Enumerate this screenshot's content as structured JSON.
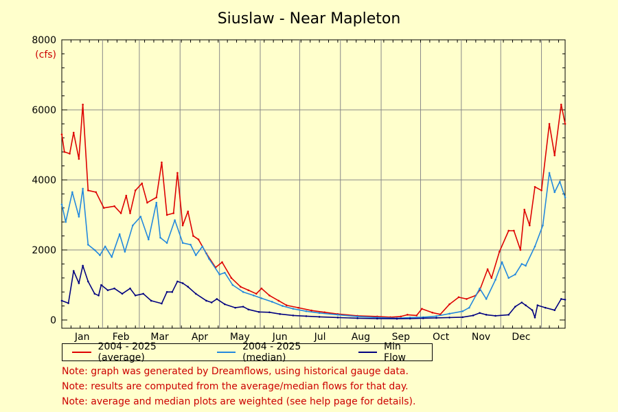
{
  "chart_data": {
    "type": "line",
    "title": "Siuslaw - Near Mapleton",
    "y_unit": "(cfs)",
    "ylim": [
      0,
      8000
    ],
    "y_ticks": [
      0,
      2000,
      4000,
      6000,
      8000
    ],
    "xlim": [
      0,
      365
    ],
    "months": [
      "Jan",
      "Feb",
      "Mar",
      "Apr",
      "May",
      "Jun",
      "Jul",
      "Aug",
      "Sep",
      "Oct",
      "Nov",
      "Dec"
    ],
    "grid": true,
    "legend_position": "bottom",
    "series": [
      {
        "name": "2004 - 2025 (average)",
        "color": "#dd0000",
        "points": [
          [
            0,
            5300
          ],
          [
            2,
            4800
          ],
          [
            6,
            4750
          ],
          [
            9,
            5350
          ],
          [
            13,
            4600
          ],
          [
            16,
            6150
          ],
          [
            20,
            3700
          ],
          [
            26,
            3650
          ],
          [
            32,
            3200
          ],
          [
            40,
            3250
          ],
          [
            45,
            3050
          ],
          [
            49,
            3550
          ],
          [
            52,
            3050
          ],
          [
            56,
            3700
          ],
          [
            61,
            3900
          ],
          [
            65,
            3350
          ],
          [
            72,
            3500
          ],
          [
            76,
            4500
          ],
          [
            80,
            3000
          ],
          [
            85,
            3050
          ],
          [
            88,
            4200
          ],
          [
            92,
            2700
          ],
          [
            96,
            3100
          ],
          [
            100,
            2400
          ],
          [
            104,
            2300
          ],
          [
            110,
            1900
          ],
          [
            117,
            1500
          ],
          [
            122,
            1650
          ],
          [
            129,
            1200
          ],
          [
            136,
            950
          ],
          [
            142,
            850
          ],
          [
            148,
            750
          ],
          [
            152,
            900
          ],
          [
            158,
            700
          ],
          [
            165,
            550
          ],
          [
            171,
            420
          ],
          [
            180,
            350
          ],
          [
            190,
            270
          ],
          [
            200,
            220
          ],
          [
            210,
            170
          ],
          [
            225,
            120
          ],
          [
            240,
            100
          ],
          [
            250,
            80
          ],
          [
            258,
            100
          ],
          [
            263,
            150
          ],
          [
            270,
            130
          ],
          [
            274,
            320
          ],
          [
            282,
            210
          ],
          [
            288,
            160
          ],
          [
            295,
            450
          ],
          [
            302,
            650
          ],
          [
            308,
            600
          ],
          [
            315,
            700
          ],
          [
            318,
            850
          ],
          [
            324,
            1450
          ],
          [
            327,
            1200
          ],
          [
            333,
            1950
          ],
          [
            340,
            2550
          ],
          [
            344,
            2550
          ],
          [
            349,
            2000
          ],
          [
            352,
            3150
          ],
          [
            356,
            2700
          ],
          [
            360,
            3800
          ],
          [
            365,
            3700
          ],
          [
            371,
            5600
          ],
          [
            375,
            4700
          ],
          [
            380,
            6150
          ],
          [
            383,
            5600
          ]
        ]
      },
      {
        "name": "2004 - 2025 (median)",
        "color": "#2288dd",
        "points": [
          [
            0,
            3300
          ],
          [
            3,
            2800
          ],
          [
            8,
            3650
          ],
          [
            13,
            2950
          ],
          [
            16,
            3750
          ],
          [
            20,
            2150
          ],
          [
            25,
            2000
          ],
          [
            29,
            1850
          ],
          [
            33,
            2100
          ],
          [
            38,
            1800
          ],
          [
            44,
            2450
          ],
          [
            48,
            1950
          ],
          [
            54,
            2700
          ],
          [
            60,
            2950
          ],
          [
            66,
            2300
          ],
          [
            72,
            3350
          ],
          [
            75,
            2350
          ],
          [
            80,
            2200
          ],
          [
            86,
            2850
          ],
          [
            92,
            2200
          ],
          [
            98,
            2150
          ],
          [
            102,
            1850
          ],
          [
            107,
            2100
          ],
          [
            112,
            1750
          ],
          [
            120,
            1300
          ],
          [
            124,
            1350
          ],
          [
            130,
            1000
          ],
          [
            138,
            800
          ],
          [
            146,
            700
          ],
          [
            152,
            620
          ],
          [
            160,
            520
          ],
          [
            168,
            400
          ],
          [
            176,
            320
          ],
          [
            186,
            250
          ],
          [
            196,
            200
          ],
          [
            210,
            150
          ],
          [
            225,
            100
          ],
          [
            240,
            70
          ],
          [
            255,
            50
          ],
          [
            265,
            70
          ],
          [
            275,
            80
          ],
          [
            285,
            110
          ],
          [
            295,
            180
          ],
          [
            305,
            250
          ],
          [
            310,
            350
          ],
          [
            318,
            900
          ],
          [
            323,
            600
          ],
          [
            330,
            1150
          ],
          [
            335,
            1650
          ],
          [
            340,
            1200
          ],
          [
            345,
            1300
          ],
          [
            350,
            1600
          ],
          [
            353,
            1550
          ],
          [
            360,
            2100
          ],
          [
            366,
            2700
          ],
          [
            371,
            4200
          ],
          [
            375,
            3650
          ],
          [
            379,
            3950
          ],
          [
            383,
            3500
          ]
        ]
      },
      {
        "name": "Min Flow",
        "color": "#000080",
        "points": [
          [
            0,
            550
          ],
          [
            5,
            480
          ],
          [
            9,
            1400
          ],
          [
            13,
            1050
          ],
          [
            16,
            1550
          ],
          [
            20,
            1100
          ],
          [
            25,
            750
          ],
          [
            28,
            700
          ],
          [
            30,
            1000
          ],
          [
            35,
            850
          ],
          [
            40,
            900
          ],
          [
            46,
            750
          ],
          [
            52,
            900
          ],
          [
            56,
            700
          ],
          [
            62,
            750
          ],
          [
            68,
            550
          ],
          [
            76,
            470
          ],
          [
            80,
            800
          ],
          [
            84,
            800
          ],
          [
            88,
            1100
          ],
          [
            92,
            1050
          ],
          [
            96,
            950
          ],
          [
            102,
            750
          ],
          [
            110,
            550
          ],
          [
            114,
            500
          ],
          [
            118,
            600
          ],
          [
            124,
            450
          ],
          [
            132,
            350
          ],
          [
            138,
            380
          ],
          [
            142,
            300
          ],
          [
            150,
            230
          ],
          [
            158,
            220
          ],
          [
            166,
            170
          ],
          [
            176,
            130
          ],
          [
            186,
            110
          ],
          [
            196,
            90
          ],
          [
            210,
            70
          ],
          [
            225,
            50
          ],
          [
            240,
            40
          ],
          [
            255,
            35
          ],
          [
            265,
            40
          ],
          [
            275,
            50
          ],
          [
            285,
            60
          ],
          [
            295,
            70
          ],
          [
            305,
            80
          ],
          [
            313,
            130
          ],
          [
            318,
            200
          ],
          [
            323,
            150
          ],
          [
            330,
            120
          ],
          [
            340,
            150
          ],
          [
            345,
            380
          ],
          [
            350,
            500
          ],
          [
            353,
            420
          ],
          [
            358,
            280
          ],
          [
            360,
            70
          ],
          [
            362,
            420
          ],
          [
            368,
            350
          ],
          [
            375,
            280
          ],
          [
            380,
            600
          ],
          [
            383,
            580
          ]
        ]
      }
    ],
    "notes": [
      "Note: graph was generated by Dreamflows, using historical gauge data.",
      "Note: results are computed from the average/median flows for that day.",
      "Note: average and median plots are weighted (see help page for details)."
    ]
  }
}
